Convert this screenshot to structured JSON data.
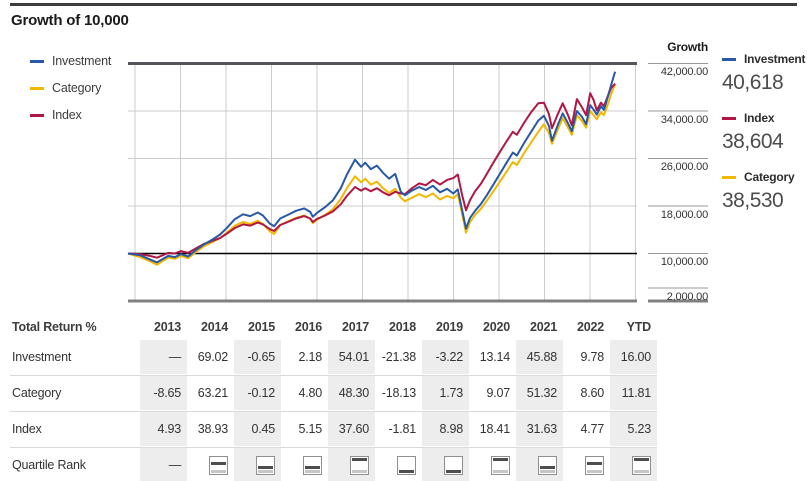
{
  "title": "Growth of 10,000",
  "legend": {
    "items": [
      {
        "label": "Investment",
        "color": "#2759A8"
      },
      {
        "label": "Category",
        "color": "#F2B700"
      },
      {
        "label": "Index",
        "color": "#B01743"
      }
    ]
  },
  "right_axis": {
    "title": "Growth",
    "labels": [
      "42,000.00",
      "34,000.00",
      "26,000.00",
      "18,000.00",
      "10,000.00",
      "2,000.00"
    ]
  },
  "summary": [
    {
      "label": "Investment",
      "value": "40,618",
      "color": "#2759A8"
    },
    {
      "label": "Index",
      "value": "38,604",
      "color": "#B01743"
    },
    {
      "label": "Category",
      "value": "38,530",
      "color": "#F2B700"
    }
  ],
  "chart_data": {
    "type": "line",
    "title": "Growth of 10,000",
    "legend_position": "left",
    "grid": true,
    "y_axis": {
      "min": 2000,
      "max": 42000,
      "step": 8000,
      "baseline": 10000,
      "tick_labels": [
        "42,000.00",
        "34,000.00",
        "26,000.00",
        "18,000.00",
        "10,000.00",
        "2,000.00"
      ]
    },
    "x_axis": {
      "labels": [
        "2013",
        "2014",
        "2015",
        "2016",
        "2017",
        "2018",
        "2019",
        "2020",
        "2021",
        "2022",
        "YTD"
      ],
      "note": "x stored as fraction of plot width, mid-2013 through YTD 2023"
    },
    "series": [
      {
        "name": "Category",
        "color": "#F2B700",
        "final": 38530,
        "points": [
          [
            0.0,
            10000
          ],
          [
            0.024,
            9400
          ],
          [
            0.043,
            8700
          ],
          [
            0.057,
            8100
          ],
          [
            0.079,
            9300
          ],
          [
            0.092,
            9100
          ],
          [
            0.104,
            9600
          ],
          [
            0.118,
            9200
          ],
          [
            0.134,
            10300
          ],
          [
            0.149,
            11200
          ],
          [
            0.165,
            11900
          ],
          [
            0.181,
            12600
          ],
          [
            0.195,
            13600
          ],
          [
            0.21,
            14700
          ],
          [
            0.226,
            15300
          ],
          [
            0.24,
            15000
          ],
          [
            0.255,
            15500
          ],
          [
            0.265,
            15000
          ],
          [
            0.279,
            13700
          ],
          [
            0.287,
            13300
          ],
          [
            0.299,
            14800
          ],
          [
            0.314,
            15400
          ],
          [
            0.33,
            16000
          ],
          [
            0.346,
            16400
          ],
          [
            0.358,
            15900
          ],
          [
            0.363,
            15100
          ],
          [
            0.371,
            15700
          ],
          [
            0.387,
            16500
          ],
          [
            0.403,
            17500
          ],
          [
            0.418,
            19200
          ],
          [
            0.43,
            21000
          ],
          [
            0.446,
            23000
          ],
          [
            0.458,
            22000
          ],
          [
            0.466,
            22600
          ],
          [
            0.477,
            21600
          ],
          [
            0.489,
            22100
          ],
          [
            0.501,
            21000
          ],
          [
            0.513,
            20200
          ],
          [
            0.525,
            20900
          ],
          [
            0.536,
            19400
          ],
          [
            0.544,
            18800
          ],
          [
            0.558,
            19400
          ],
          [
            0.572,
            20000
          ],
          [
            0.585,
            19500
          ],
          [
            0.599,
            20100
          ],
          [
            0.613,
            19100
          ],
          [
            0.627,
            19700
          ],
          [
            0.639,
            19300
          ],
          [
            0.648,
            20000
          ],
          [
            0.656,
            16800
          ],
          [
            0.664,
            13500
          ],
          [
            0.672,
            15300
          ],
          [
            0.682,
            16500
          ],
          [
            0.694,
            17600
          ],
          [
            0.705,
            18900
          ],
          [
            0.717,
            20400
          ],
          [
            0.729,
            21900
          ],
          [
            0.743,
            23700
          ],
          [
            0.756,
            25400
          ],
          [
            0.764,
            24900
          ],
          [
            0.778,
            26900
          ],
          [
            0.792,
            28700
          ],
          [
            0.806,
            30500
          ],
          [
            0.817,
            31800
          ],
          [
            0.827,
            30300
          ],
          [
            0.833,
            28500
          ],
          [
            0.845,
            31000
          ],
          [
            0.854,
            32800
          ],
          [
            0.864,
            31300
          ],
          [
            0.872,
            30000
          ],
          [
            0.882,
            33300
          ],
          [
            0.892,
            32300
          ],
          [
            0.9,
            31200
          ],
          [
            0.908,
            34000
          ],
          [
            0.915,
            33300
          ],
          [
            0.921,
            32600
          ],
          [
            0.929,
            33800
          ],
          [
            0.935,
            33300
          ],
          [
            0.943,
            35200
          ],
          [
            0.949,
            36800
          ],
          [
            0.957,
            38530
          ]
        ]
      },
      {
        "name": "Index",
        "color": "#B01743",
        "final": 38604,
        "points": [
          [
            0.0,
            10000
          ],
          [
            0.024,
            9900
          ],
          [
            0.043,
            9600
          ],
          [
            0.057,
            9300
          ],
          [
            0.079,
            10100
          ],
          [
            0.092,
            10000
          ],
          [
            0.104,
            10400
          ],
          [
            0.118,
            10100
          ],
          [
            0.134,
            10900
          ],
          [
            0.149,
            11600
          ],
          [
            0.165,
            12100
          ],
          [
            0.181,
            12600
          ],
          [
            0.195,
            13400
          ],
          [
            0.21,
            14300
          ],
          [
            0.226,
            14900
          ],
          [
            0.24,
            14700
          ],
          [
            0.255,
            15200
          ],
          [
            0.265,
            14900
          ],
          [
            0.279,
            14100
          ],
          [
            0.287,
            13800
          ],
          [
            0.299,
            14800
          ],
          [
            0.314,
            15300
          ],
          [
            0.33,
            15900
          ],
          [
            0.346,
            16300
          ],
          [
            0.358,
            15900
          ],
          [
            0.363,
            15300
          ],
          [
            0.371,
            15800
          ],
          [
            0.387,
            16400
          ],
          [
            0.403,
            17100
          ],
          [
            0.418,
            18300
          ],
          [
            0.43,
            19700
          ],
          [
            0.446,
            21200
          ],
          [
            0.458,
            20600
          ],
          [
            0.466,
            21000
          ],
          [
            0.477,
            20500
          ],
          [
            0.489,
            21000
          ],
          [
            0.501,
            20300
          ],
          [
            0.513,
            19800
          ],
          [
            0.525,
            20400
          ],
          [
            0.536,
            20100
          ],
          [
            0.544,
            20000
          ],
          [
            0.558,
            21000
          ],
          [
            0.572,
            21800
          ],
          [
            0.585,
            21500
          ],
          [
            0.599,
            22400
          ],
          [
            0.613,
            21600
          ],
          [
            0.627,
            22400
          ],
          [
            0.639,
            22700
          ],
          [
            0.648,
            23300
          ],
          [
            0.656,
            20000
          ],
          [
            0.664,
            17300
          ],
          [
            0.672,
            19000
          ],
          [
            0.682,
            20500
          ],
          [
            0.694,
            21800
          ],
          [
            0.705,
            23400
          ],
          [
            0.717,
            25200
          ],
          [
            0.729,
            26900
          ],
          [
            0.743,
            28800
          ],
          [
            0.756,
            30500
          ],
          [
            0.764,
            30000
          ],
          [
            0.778,
            32000
          ],
          [
            0.792,
            33800
          ],
          [
            0.806,
            35300
          ],
          [
            0.817,
            35400
          ],
          [
            0.827,
            33500
          ],
          [
            0.833,
            31100
          ],
          [
            0.845,
            33600
          ],
          [
            0.854,
            35300
          ],
          [
            0.864,
            33400
          ],
          [
            0.872,
            31600
          ],
          [
            0.882,
            36000
          ],
          [
            0.892,
            34600
          ],
          [
            0.9,
            33300
          ],
          [
            0.908,
            37000
          ],
          [
            0.915,
            35800
          ],
          [
            0.921,
            34100
          ],
          [
            0.929,
            35400
          ],
          [
            0.935,
            34800
          ],
          [
            0.943,
            36600
          ],
          [
            0.949,
            37800
          ],
          [
            0.957,
            38604
          ]
        ]
      },
      {
        "name": "Investment",
        "color": "#2759A8",
        "final": 40618,
        "points": [
          [
            0.0,
            10000
          ],
          [
            0.024,
            9700
          ],
          [
            0.043,
            9000
          ],
          [
            0.057,
            8500
          ],
          [
            0.079,
            9600
          ],
          [
            0.092,
            9400
          ],
          [
            0.104,
            9900
          ],
          [
            0.118,
            9500
          ],
          [
            0.134,
            10600
          ],
          [
            0.149,
            11500
          ],
          [
            0.165,
            12300
          ],
          [
            0.181,
            13200
          ],
          [
            0.195,
            14400
          ],
          [
            0.21,
            15800
          ],
          [
            0.226,
            16600
          ],
          [
            0.24,
            16300
          ],
          [
            0.255,
            16900
          ],
          [
            0.265,
            16400
          ],
          [
            0.279,
            15000
          ],
          [
            0.287,
            14600
          ],
          [
            0.299,
            15900
          ],
          [
            0.314,
            16500
          ],
          [
            0.33,
            17200
          ],
          [
            0.346,
            17600
          ],
          [
            0.358,
            17000
          ],
          [
            0.363,
            16200
          ],
          [
            0.371,
            16800
          ],
          [
            0.387,
            17800
          ],
          [
            0.403,
            19000
          ],
          [
            0.418,
            21000
          ],
          [
            0.43,
            23300
          ],
          [
            0.446,
            25800
          ],
          [
            0.458,
            24600
          ],
          [
            0.466,
            25300
          ],
          [
            0.477,
            24200
          ],
          [
            0.489,
            24800
          ],
          [
            0.501,
            23600
          ],
          [
            0.513,
            22600
          ],
          [
            0.525,
            23400
          ],
          [
            0.536,
            20400
          ],
          [
            0.544,
            19800
          ],
          [
            0.558,
            20600
          ],
          [
            0.572,
            21200
          ],
          [
            0.585,
            20700
          ],
          [
            0.599,
            21400
          ],
          [
            0.613,
            20300
          ],
          [
            0.627,
            20900
          ],
          [
            0.639,
            20100
          ],
          [
            0.648,
            20800
          ],
          [
            0.656,
            17500
          ],
          [
            0.664,
            14200
          ],
          [
            0.672,
            16000
          ],
          [
            0.682,
            17200
          ],
          [
            0.694,
            18400
          ],
          [
            0.705,
            19800
          ],
          [
            0.717,
            21500
          ],
          [
            0.729,
            23200
          ],
          [
            0.743,
            25200
          ],
          [
            0.756,
            27000
          ],
          [
            0.764,
            26500
          ],
          [
            0.778,
            28600
          ],
          [
            0.792,
            30500
          ],
          [
            0.806,
            32400
          ],
          [
            0.817,
            33200
          ],
          [
            0.827,
            31500
          ],
          [
            0.833,
            29000
          ],
          [
            0.845,
            31800
          ],
          [
            0.854,
            33600
          ],
          [
            0.864,
            32000
          ],
          [
            0.872,
            30600
          ],
          [
            0.882,
            34000
          ],
          [
            0.892,
            33000
          ],
          [
            0.9,
            31800
          ],
          [
            0.908,
            35000
          ],
          [
            0.915,
            34200
          ],
          [
            0.921,
            33400
          ],
          [
            0.929,
            34800
          ],
          [
            0.935,
            34200
          ],
          [
            0.943,
            36500
          ],
          [
            0.949,
            38300
          ],
          [
            0.957,
            40618
          ]
        ]
      }
    ]
  },
  "table": {
    "header": [
      "Total Return %",
      "2013",
      "2014",
      "2015",
      "2016",
      "2017",
      "2018",
      "2019",
      "2020",
      "2021",
      "2022",
      "YTD"
    ],
    "shaded_columns": [
      0,
      2,
      4,
      6,
      8,
      10
    ],
    "rows": [
      {
        "label": "Investment",
        "type": "values",
        "values": [
          "—",
          "69.02",
          "-0.65",
          "2.18",
          "54.01",
          "-21.38",
          "-3.22",
          "13.14",
          "45.88",
          "9.78",
          "16.00"
        ]
      },
      {
        "label": "Category",
        "type": "values",
        "values": [
          "-8.65",
          "63.21",
          "-0.12",
          "4.80",
          "48.30",
          "-18.13",
          "1.73",
          "9.07",
          "51.32",
          "8.60",
          "11.81"
        ]
      },
      {
        "label": "Index",
        "type": "values",
        "values": [
          "4.93",
          "38.93",
          "0.45",
          "5.15",
          "37.60",
          "-1.81",
          "8.98",
          "18.41",
          "31.63",
          "4.77",
          "5.23"
        ]
      },
      {
        "label": "Quartile Rank",
        "type": "quartile",
        "values": [
          "—",
          2,
          3,
          3,
          1,
          4,
          4,
          1,
          3,
          2,
          1
        ]
      }
    ]
  }
}
